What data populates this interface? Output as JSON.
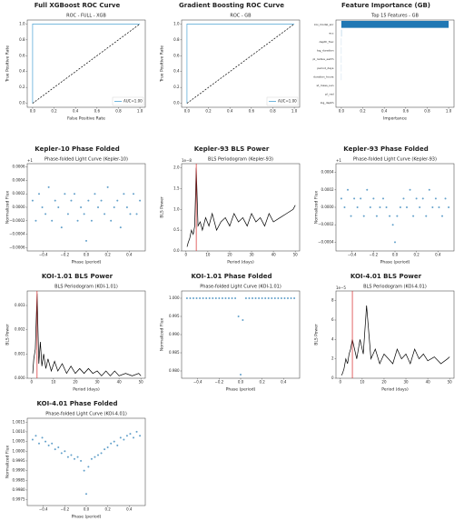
{
  "chart_data": [
    {
      "type": "line",
      "title": "Full XGBoost ROC Curve",
      "subtitle": "ROC - FULL - XGB",
      "xlabel": "False Positive Rate",
      "ylabel": "True Positive Rate",
      "xlim": [
        -0.05,
        1.05
      ],
      "ylim": [
        -0.05,
        1.05
      ],
      "xticks": [
        {
          "value": 0,
          "label": "0.0"
        },
        0.2,
        0.4,
        0.6,
        0.8,
        {
          "value": 1,
          "label": "1.0"
        }
      ],
      "yticks": [
        {
          "value": 0,
          "label": "0.0"
        },
        0.2,
        0.4,
        0.6,
        0.8,
        {
          "value": 1,
          "label": "1.0"
        }
      ],
      "legend": "lower right",
      "series": [
        {
          "name": "AUC=1.00",
          "color": "#4da3d4",
          "x": [
            0,
            0,
            1
          ],
          "values": [
            0,
            1,
            1
          ]
        },
        {
          "color": "#000000",
          "dashed": true,
          "x": [
            0,
            1
          ],
          "values": [
            0,
            1
          ]
        }
      ]
    },
    {
      "type": "line",
      "title": "Gradient Boosting ROC Curve",
      "subtitle": "ROC - GB",
      "ylabel": "True Positive Rate",
      "xlim": [
        -0.05,
        1.05
      ],
      "ylim": [
        -0.05,
        1.05
      ],
      "xticks": [
        {
          "value": 0,
          "label": "0.0"
        },
        0.2,
        0.4,
        0.6,
        0.8,
        {
          "value": 1,
          "label": "1.0"
        }
      ],
      "yticks": [
        {
          "value": 0,
          "label": "0.0"
        },
        0.2,
        0.4,
        0.6,
        0.8,
        {
          "value": 1,
          "label": "1.0"
        }
      ],
      "legend": "lower right",
      "series": [
        {
          "name": "AUC=1.00",
          "color": "#4da3d4",
          "x": [
            0,
            0,
            1
          ],
          "values": [
            0,
            1,
            1
          ]
        },
        {
          "color": "#000000",
          "dashed": true,
          "x": [
            0,
            1
          ],
          "values": [
            0,
            1
          ]
        }
      ]
    },
    {
      "type": "barh",
      "title": "Feature Importance (GB)",
      "subtitle": "Top 15 Features - GB",
      "xlabel": "Importance",
      "xlim": [
        -0.05,
        1.05
      ],
      "xticks": [
        {
          "value": 0,
          "label": "0.0"
        },
        0.2,
        0.4,
        0.6,
        0.8,
        {
          "value": 1,
          "label": "1.0"
        }
      ],
      "categories": [
        "koi_model_snr",
        "ecc",
        "depth_frac",
        "log_duration",
        "pl_radius_earth",
        "period_days",
        "duration_hours",
        "st_mass_sun",
        "pl_rad",
        "log_depth"
      ],
      "values": [
        1.0,
        0.002,
        0.001,
        0.001,
        0.001,
        0.001,
        0.001,
        0,
        0,
        0
      ],
      "color": "#1f77b4"
    },
    {
      "type": "scatter",
      "title": "Kepler-10 Phase Folded",
      "subtitle": "Phase-folded Light Curve (Kepler-10)",
      "xlabel": "Phase (period)",
      "ylabel": "Normalized Flux",
      "y_offset_label": "+1",
      "xlim": [
        -0.55,
        0.55
      ],
      "ylim": [
        -0.00065,
        0.00065
      ],
      "xticks": [
        {
          "value": -0.4,
          "label": "−0.4"
        },
        {
          "value": -0.2,
          "label": "−0.2"
        },
        {
          "value": 0,
          "label": "0.0"
        },
        0.2,
        0.4
      ],
      "yticks": [
        0.0006,
        0.0004,
        0.0002,
        {
          "value": 0,
          "label": "0.0000"
        },
        {
          "value": -0.0002,
          "label": "−0.0002"
        },
        {
          "value": -0.0004,
          "label": "−0.0004"
        },
        {
          "value": -0.0006,
          "label": "−0.0006"
        }
      ],
      "series": [
        {
          "color": "#1f77b4",
          "x": [
            -0.5,
            -0.47,
            -0.44,
            -0.41,
            -0.38,
            -0.35,
            -0.32,
            -0.29,
            -0.26,
            -0.23,
            -0.2,
            -0.17,
            -0.14,
            -0.11,
            -0.08,
            -0.05,
            -0.02,
            0,
            0.02,
            0.05,
            0.08,
            0.11,
            0.14,
            0.17,
            0.2,
            0.23,
            0.26,
            0.29,
            0.32,
            0.35,
            0.38,
            0.41,
            0.44,
            0.47,
            0.5
          ],
          "values": [
            0.0001,
            -0.0002,
            0.0002,
            0,
            -0.0001,
            0.0003,
            -0.0002,
            0.0001,
            0,
            -0.0003,
            0.0002,
            -0.0001,
            0.0001,
            0.0002,
            -0.0002,
            0,
            -0.0001,
            -0.0005,
            0.0001,
            -0.0002,
            0.0002,
            0,
            0.0001,
            -0.0001,
            0.0003,
            -0.0002,
            0,
            0.0001,
            -0.0003,
            0.0002,
            0,
            -0.0001,
            0.0002,
            -0.0001,
            0.0001
          ]
        }
      ]
    },
    {
      "type": "line",
      "title": "Kepler-93 BLS Power",
      "subtitle": "BLS Periodogram (Kepler-93)",
      "xlabel": "Period (days)",
      "ylabel": "BLS Power",
      "y_offset_label": "1e−8",
      "xlim": [
        -2,
        52
      ],
      "ylim": [
        0,
        2.1
      ],
      "xticks": [
        0,
        10,
        20,
        30,
        40,
        50
      ],
      "yticks": [
        {
          "value": 0,
          "label": "0.0"
        },
        0.5,
        {
          "value": 1,
          "label": "1.0"
        },
        1.5,
        {
          "value": 2,
          "label": "2.0"
        }
      ],
      "series": [
        {
          "color": "#000000",
          "x": [
            0.5,
            1,
            1.7,
            2.5,
            3.3,
            4,
            4.7,
            5.5,
            6.5,
            7.5,
            9,
            10.5,
            12,
            14,
            16,
            18,
            20,
            22,
            24,
            26,
            28,
            30,
            32,
            34,
            36,
            38,
            40,
            43,
            46,
            49,
            50
          ],
          "values": [
            0.1,
            0.2,
            0.3,
            0.5,
            0.4,
            0.6,
            2.0,
            0.6,
            0.7,
            0.5,
            0.8,
            0.6,
            0.9,
            0.5,
            0.7,
            0.8,
            0.6,
            0.9,
            0.7,
            0.8,
            0.6,
            0.9,
            0.7,
            0.8,
            0.6,
            0.9,
            0.7,
            0.8,
            0.9,
            1.0,
            1.1
          ]
        },
        {
          "color": "#d62728",
          "x": [
            4.7,
            4.7
          ],
          "values": [
            0,
            2.1
          ]
        }
      ]
    },
    {
      "type": "scatter",
      "title": "Kepler-93 Phase Folded",
      "subtitle": "Phase-folded Light Curve (Kepler-93)",
      "xlabel": "Phase (period)",
      "ylabel": "Normalized Flux",
      "y_offset_label": "+1",
      "xlim": [
        -0.55,
        0.55
      ],
      "ylim": [
        -0.0005,
        0.0005
      ],
      "xticks": [
        {
          "value": -0.4,
          "label": "−0.4"
        },
        {
          "value": -0.2,
          "label": "−0.2"
        },
        {
          "value": 0,
          "label": "0.0"
        },
        0.2,
        0.4
      ],
      "yticks": [
        0.0004,
        0.0002,
        {
          "value": 0,
          "label": "0.0000"
        },
        {
          "value": -0.0002,
          "label": "−0.0002"
        },
        {
          "value": -0.0004,
          "label": "−0.0004"
        }
      ],
      "series": [
        {
          "color": "#1f77b4",
          "x": [
            -0.5,
            -0.47,
            -0.44,
            -0.41,
            -0.38,
            -0.35,
            -0.32,
            -0.29,
            -0.26,
            -0.23,
            -0.2,
            -0.17,
            -0.14,
            -0.11,
            -0.08,
            -0.05,
            -0.02,
            0,
            0.02,
            0.05,
            0.08,
            0.11,
            0.14,
            0.17,
            0.2,
            0.23,
            0.26,
            0.29,
            0.32,
            0.35,
            0.38,
            0.41,
            0.44,
            0.47,
            0.5
          ],
          "values": [
            0.0001,
            0,
            0.0002,
            -0.0001,
            0.0001,
            0,
            0.0001,
            -0.0001,
            0.0002,
            0,
            0.0001,
            -0.0001,
            0,
            0.0001,
            0,
            -0.0001,
            -0.0002,
            -0.0004,
            -0.0001,
            0,
            0.0001,
            0,
            0.0002,
            -0.0001,
            0.0001,
            0,
            0.0001,
            -0.0001,
            0.0002,
            0,
            0.0001,
            0,
            -0.0001,
            0.0001,
            0
          ]
        }
      ]
    },
    {
      "type": "line",
      "title": "KOI-1.01 BLS Power",
      "subtitle": "BLS Periodogram (KOI-1.01)",
      "xlabel": "Period (days)",
      "ylabel": "BLS Power",
      "xlim": [
        -2,
        52
      ],
      "ylim": [
        0,
        0.0036
      ],
      "xticks": [
        0,
        10,
        20,
        30,
        40,
        50
      ],
      "yticks": [
        {
          "value": 0,
          "label": "0.000"
        },
        0.001,
        0.002,
        0.003
      ],
      "series": [
        {
          "color": "#000000",
          "x": [
            0.5,
            1,
            1.7,
            2.5,
            3.3,
            4,
            4.7,
            5.5,
            6.5,
            7.5,
            9,
            10.5,
            12,
            14,
            16,
            18,
            20,
            22,
            24,
            26,
            28,
            30,
            32,
            34,
            36,
            38,
            40,
            43,
            46,
            49,
            50
          ],
          "values": [
            0.0002,
            0.0008,
            0.0012,
            0.0035,
            0.0006,
            0.0015,
            0.0005,
            0.001,
            0.0004,
            0.0008,
            0.0003,
            0.0007,
            0.0003,
            0.0006,
            0.0002,
            0.0005,
            0.0002,
            0.0004,
            0.0002,
            0.0004,
            0.0002,
            0.0003,
            0.0001,
            0.0003,
            0.0001,
            0.0003,
            0.0001,
            0.0002,
            0.0001,
            0.0002,
            0.0001
          ]
        },
        {
          "color": "#d62728",
          "x": [
            2.5,
            2.5
          ],
          "values": [
            0,
            0.0036
          ]
        }
      ]
    },
    {
      "type": "scatter",
      "title": "KOI-1.01 Phase Folded",
      "subtitle": "Phase-folded Light Curve (KOI-1.01)",
      "xlabel": "Phase (period)",
      "ylabel": "Normalized Flux",
      "xlim": [
        -0.55,
        0.55
      ],
      "ylim": [
        0.978,
        1.002
      ],
      "xticks": [
        {
          "value": -0.4,
          "label": "−0.4"
        },
        {
          "value": -0.2,
          "label": "−0.2"
        },
        {
          "value": 0,
          "label": "0.0"
        },
        0.2,
        0.4
      ],
      "yticks": [
        {
          "value": 1,
          "label": "1.000"
        },
        0.995,
        {
          "value": 0.99,
          "label": "0.990"
        },
        0.985,
        {
          "value": 0.98,
          "label": "0.980"
        }
      ],
      "series": [
        {
          "color": "#1f77b4",
          "x": [
            -0.5,
            -0.47,
            -0.44,
            -0.41,
            -0.38,
            -0.35,
            -0.32,
            -0.29,
            -0.26,
            -0.23,
            -0.2,
            -0.17,
            -0.14,
            -0.11,
            -0.08,
            -0.05,
            -0.02,
            0,
            0.02,
            0.05,
            0.08,
            0.11,
            0.14,
            0.17,
            0.2,
            0.23,
            0.26,
            0.29,
            0.32,
            0.35,
            0.38,
            0.41,
            0.44,
            0.47,
            0.5
          ],
          "values": [
            1,
            1,
            1,
            1,
            1,
            1,
            1,
            1,
            1,
            1,
            1,
            1,
            1,
            1,
            1,
            1,
            0.995,
            0.979,
            0.994,
            1,
            1,
            1,
            1,
            1,
            1,
            1,
            1,
            1,
            1,
            1,
            1,
            1,
            1,
            1,
            1
          ]
        }
      ]
    },
    {
      "type": "line",
      "title": "KOI-4.01 BLS Power",
      "subtitle": "BLS Periodogram (KOI-4.01)",
      "xlabel": "Period (days)",
      "ylabel": "BLS Power",
      "y_offset_label": "1e−5",
      "xlim": [
        -2,
        52
      ],
      "ylim": [
        0,
        9
      ],
      "xticks": [
        0,
        10,
        20,
        30,
        40,
        50
      ],
      "yticks": [
        0,
        2,
        4,
        6,
        8
      ],
      "series": [
        {
          "color": "#000000",
          "x": [
            0.5,
            1,
            1.7,
            2.5,
            3.3,
            4,
            4.7,
            5.5,
            6.5,
            7.5,
            9,
            10.5,
            12,
            14,
            16,
            18,
            20,
            22,
            24,
            26,
            28,
            30,
            32,
            34,
            36,
            38,
            40,
            43,
            46,
            49,
            50
          ],
          "values": [
            0.3,
            0.5,
            1,
            2,
            1.5,
            2.5,
            3,
            4,
            3,
            2,
            4,
            2.5,
            7.5,
            2,
            3,
            1.5,
            2.5,
            2,
            1.5,
            3,
            2,
            2.5,
            1.5,
            3,
            2,
            2.5,
            1.8,
            2.2,
            1.5,
            2,
            2.2
          ]
        },
        {
          "color": "#d62728",
          "x": [
            5.5,
            5.5
          ],
          "values": [
            0,
            9
          ]
        }
      ]
    },
    {
      "type": "scatter",
      "title": "KOI-4.01 Phase Folded",
      "subtitle": "Phase-folded Light Curve (KOI-4.01)",
      "xlabel": "Phase (period)",
      "ylabel": "Normalized Flux",
      "xlim": [
        -0.55,
        0.55
      ],
      "ylim": [
        0.9972,
        1.0017
      ],
      "xticks": [
        {
          "value": -0.4,
          "label": "−0.4"
        },
        {
          "value": -0.2,
          "label": "−0.2"
        },
        {
          "value": 0,
          "label": "0.0"
        },
        0.2,
        0.4
      ],
      "yticks": [
        1.0015,
        {
          "value": 1.001,
          "label": "1.0010"
        },
        1.0005,
        {
          "value": 1,
          "label": "1.0000"
        },
        0.9995,
        {
          "value": 0.999,
          "label": "0.9990"
        },
        0.9985,
        {
          "value": 0.998,
          "label": "0.9980"
        },
        0.9975
      ],
      "series": [
        {
          "color": "#1f77b4",
          "x": [
            -0.5,
            -0.47,
            -0.44,
            -0.41,
            -0.38,
            -0.35,
            -0.32,
            -0.29,
            -0.26,
            -0.23,
            -0.2,
            -0.17,
            -0.14,
            -0.11,
            -0.08,
            -0.05,
            -0.02,
            0,
            0.02,
            0.05,
            0.08,
            0.11,
            0.14,
            0.17,
            0.2,
            0.23,
            0.26,
            0.29,
            0.32,
            0.35,
            0.38,
            0.41,
            0.44,
            0.47,
            0.5
          ],
          "values": [
            1.0006,
            1.0008,
            1.0004,
            1.0007,
            1.0005,
            1.0003,
            1.0004,
            1.0001,
            1.0002,
            0.9999,
            1,
            0.9997,
            0.9998,
            0.9996,
            0.9997,
            0.9995,
            0.999,
            0.9978,
            0.9992,
            0.9996,
            0.9997,
            0.9998,
            0.9999,
            1.0001,
            1.0002,
            1.0004,
            1.0005,
            1.0003,
            1.0007,
            1.0006,
            1.0008,
            1.0009,
            1.0007,
            1.001,
            1.0008
          ]
        }
      ]
    }
  ]
}
